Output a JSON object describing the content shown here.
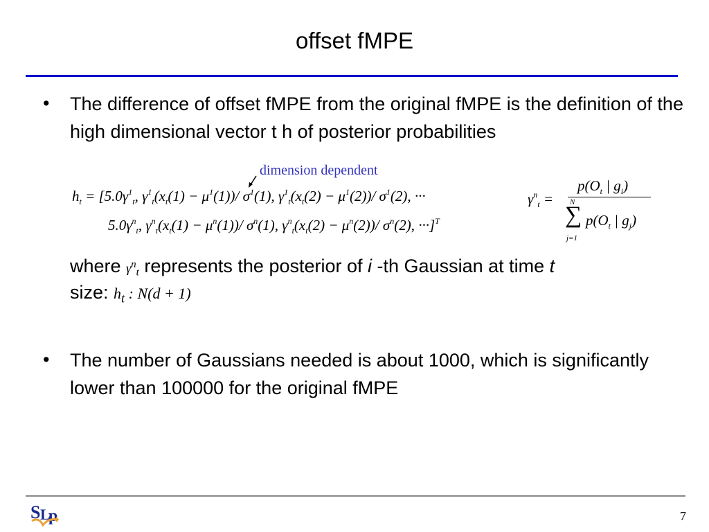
{
  "slide": {
    "title": "offset fMPE",
    "bullets": [
      {
        "symbol": "•",
        "text": "The difference of offset fMPE from the original fMPE is the definition of the high dimensional vector t h of posterior probabilities"
      },
      {
        "symbol": "•",
        "text": "The number of Gaussians needed is about 1000, which is significantly lower than 100000 for the original fMPE"
      }
    ],
    "annotation": "dimension dependent",
    "equation": {
      "line1": "h_{t} = [5.0γ^{1}_{t}, γ^{1}_{t}(x_{t}(1) − μ^{1}(1))/ σ^{1}(1), γ^{1}_{t}(x_{t}(2) − μ^{1}(2))/ σ^{1}(2), ···",
      "line2": "5.0γ^{n}_{t}, γ^{n}_{t}(x_{t}(1) − μ^{n}(1))/ σ^{n}(1), γ^{n}_{t}(x_{t}(2) − μ^{n}(2))/ σ^{n}(2), ···]^{T}",
      "gamma_lhs": "γ^{n}_{t} =",
      "numerator": "p(O_{t} | g_{i})",
      "sum_upper": "N",
      "sum_symbol": "∑",
      "sum_lower": "j=1",
      "denominator": "p(O_{t} | g_{j})"
    },
    "where_line": {
      "prefix": "where",
      "symbol": "γ^{n}_{t}",
      "middle": "represents the posterior of",
      "i": "i",
      "suffix": "-th Gaussian at time",
      "t": "t"
    },
    "size_line": {
      "label": "size:",
      "expr": "h_{t} : N(d + 1)"
    },
    "page_number": "7",
    "logo_text": "SLP",
    "colors": {
      "rule": "#0000c8",
      "annotation": "#3333bb",
      "logo_blue": "#1a2a8c",
      "logo_orange": "#e8a23a"
    }
  }
}
